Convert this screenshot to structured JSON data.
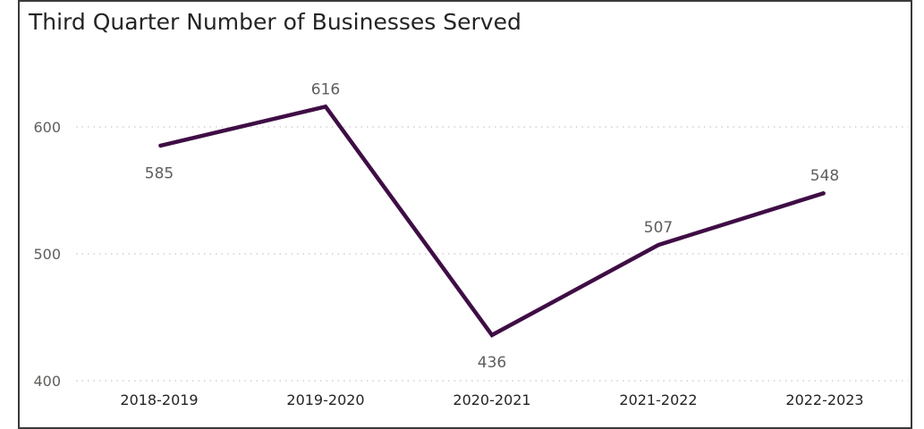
{
  "chart_data": {
    "type": "line",
    "title": "Third Quarter Number of Businesses Served",
    "categories": [
      "2018-2019",
      "2019-2020",
      "2020-2021",
      "2021-2022",
      "2022-2023"
    ],
    "values": [
      585,
      616,
      436,
      507,
      548
    ],
    "data_labels": [
      "585",
      "616",
      "436",
      "507",
      "548"
    ],
    "y_ticks": [
      "400",
      "500",
      "600"
    ],
    "ylim": [
      400,
      640
    ],
    "grid": true,
    "line_color": "#3f0d45",
    "grid_color": "#c8c6c4"
  }
}
